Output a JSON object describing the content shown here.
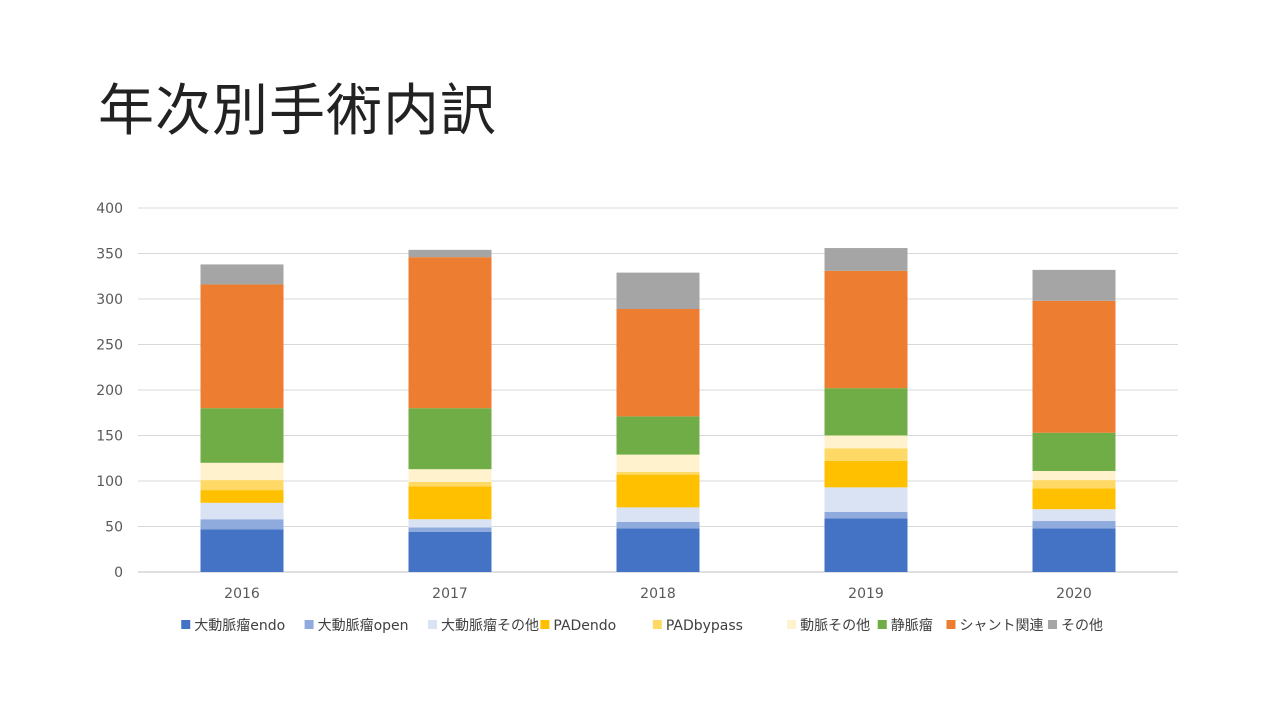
{
  "slide_title": "年次別手術内訳",
  "chart_data": {
    "type": "bar",
    "stacked": true,
    "title": "",
    "xlabel": "",
    "ylabel": "",
    "ylim": [
      0,
      400
    ],
    "yticks": [
      0,
      50,
      100,
      150,
      200,
      250,
      300,
      350,
      400
    ],
    "grid": true,
    "legend_position": "bottom",
    "categories": [
      "2016",
      "2017",
      "2018",
      "2019",
      "2020"
    ],
    "series": [
      {
        "name": "大動脈瘤endo",
        "color": "#4472C4",
        "values": [
          47,
          44,
          48,
          59,
          48
        ]
      },
      {
        "name": "大動脈瘤open",
        "color": "#8FAADC",
        "values": [
          11,
          5,
          7,
          7,
          8
        ]
      },
      {
        "name": "大動脈瘤その他",
        "color": "#DAE3F3",
        "values": [
          18,
          9,
          16,
          27,
          13
        ]
      },
      {
        "name": "PADendo",
        "color": "#FFC000",
        "values": [
          14,
          36,
          36,
          29,
          23
        ]
      },
      {
        "name": "PADbypass",
        "color": "#FFD966",
        "values": [
          11,
          5,
          3,
          14,
          9
        ]
      },
      {
        "name": "動脈その他",
        "color": "#FFF2CC",
        "values": [
          19,
          14,
          19,
          14,
          10
        ]
      },
      {
        "name": "静脈瘤",
        "color": "#70AD47",
        "values": [
          60,
          67,
          42,
          52,
          42
        ]
      },
      {
        "name": "シャント関連",
        "color": "#ED7D31",
        "values": [
          136,
          166,
          118,
          129,
          145
        ]
      },
      {
        "name": "その他",
        "color": "#A5A5A5",
        "values": [
          22,
          8,
          40,
          25,
          34
        ]
      }
    ]
  }
}
